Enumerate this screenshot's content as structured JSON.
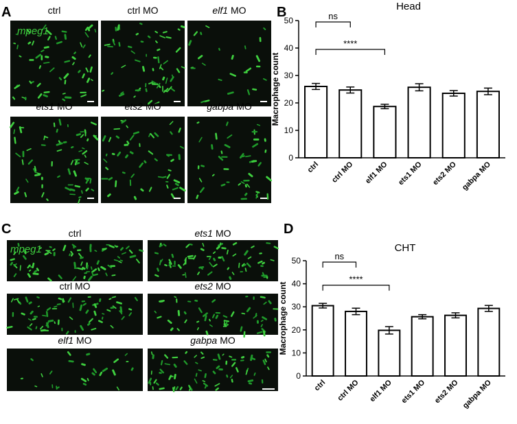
{
  "panel_labels": [
    "A",
    "B",
    "C",
    "D"
  ],
  "panel_a": {
    "marker": "mpeg1",
    "images": [
      {
        "label": "ctrl"
      },
      {
        "label": "ctrl MO"
      },
      {
        "gene": "elf1",
        "suffix": "MO"
      },
      {
        "gene": "ets1",
        "suffix": "MO"
      },
      {
        "gene": "ets2",
        "suffix": "MO"
      },
      {
        "gene": "gabpa",
        "suffix": "MO"
      }
    ]
  },
  "panel_c": {
    "marker": "mpeg1",
    "images": [
      {
        "label": "ctrl"
      },
      {
        "gene": "ets1",
        "suffix": "MO"
      },
      {
        "label": "ctrl MO"
      },
      {
        "gene": "ets2",
        "suffix": "MO"
      },
      {
        "gene": "elf1",
        "suffix": "MO"
      },
      {
        "gene": "gabpa",
        "suffix": "MO"
      }
    ]
  },
  "chart_data": [
    {
      "type": "bar",
      "title": "Head",
      "y_label": "Macrophage count",
      "categories": [
        "ctrl",
        "ctrl MO",
        "elf1 MO",
        "ets1 MO",
        "ets2 MO",
        "gabpa MO"
      ],
      "values": [
        26,
        24.7,
        18.7,
        25.7,
        23.5,
        24.2
      ],
      "errors": [
        1.1,
        1.1,
        0.8,
        1.3,
        1.0,
        1.2
      ],
      "ylim": [
        0,
        50
      ],
      "yticks": [
        0,
        10,
        20,
        30,
        40,
        50
      ],
      "annotations": [
        {
          "text": "ns",
          "from": 0,
          "to": 1
        },
        {
          "text": "****",
          "from": 0,
          "to": 2
        }
      ]
    },
    {
      "type": "bar",
      "title": "CHT",
      "y_label": "Macrophage count",
      "categories": [
        "ctrl",
        "ctrl MO",
        "elf1 MO",
        "ets1 MO",
        "ets2 MO",
        "gabpa MO"
      ],
      "values": [
        30.5,
        28,
        19.8,
        25.7,
        26.3,
        29.3
      ],
      "errors": [
        1.0,
        1.4,
        1.6,
        0.9,
        1.1,
        1.3
      ],
      "ylim": [
        0,
        50
      ],
      "yticks": [
        0,
        10,
        20,
        30,
        40,
        50
      ],
      "annotations": [
        {
          "text": "ns",
          "from": 0,
          "to": 1
        },
        {
          "text": "****",
          "from": 0,
          "to": 2
        }
      ]
    }
  ]
}
